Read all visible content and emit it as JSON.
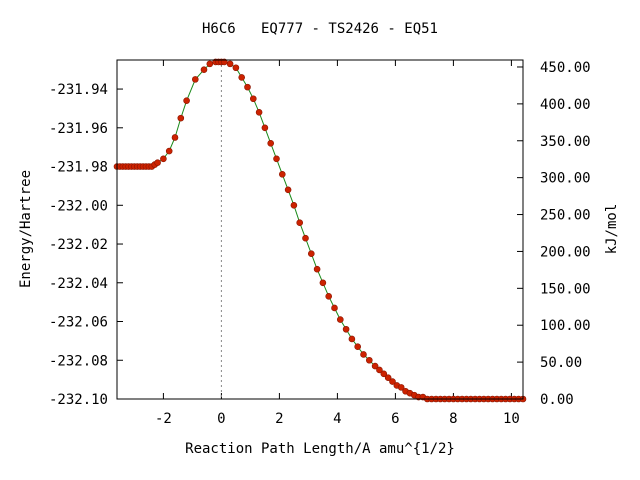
{
  "chart_data": {
    "type": "scatter",
    "title": "H6C6   EQ777 - TS2426 - EQ51",
    "xlabel": "Reaction Path Length/A amu^{1/2}",
    "ylabel_left": "Energy/Hartree",
    "ylabel_right": "kJ/mol",
    "xlim": [
      -3.6,
      10.4
    ],
    "ylim": [
      -232.1,
      -231.925
    ],
    "x_ticks": [
      -2,
      0,
      2,
      4,
      6,
      8,
      10
    ],
    "x_tick_labels": [
      "-2",
      "0",
      "2",
      "4",
      "6",
      "8",
      "10"
    ],
    "y_ticks": [
      -231.94,
      -231.96,
      -231.98,
      -232.0,
      -232.02,
      -232.04,
      -232.06,
      -232.08,
      -232.1
    ],
    "y_tick_labels": [
      "-231.94",
      "-231.96",
      "-231.98",
      "-232.00",
      "-232.02",
      "-232.04",
      "-232.06",
      "-232.08",
      "-232.10"
    ],
    "y2_ticks": [
      0,
      50,
      100,
      150,
      200,
      250,
      300,
      350,
      400,
      450
    ],
    "y2_tick_labels": [
      "0.00",
      "50.00",
      "100.00",
      "150.00",
      "200.00",
      "250.00",
      "300.00",
      "350.00",
      "400.00",
      "450.00"
    ],
    "ts_marker_x": 0,
    "grid": false,
    "line_color": "#1a8a1a",
    "marker_color": "#cc2200",
    "series": [
      {
        "x": [
          -3.6,
          -3.5,
          -3.4,
          -3.3,
          -3.2,
          -3.1,
          -3.0,
          -2.9,
          -2.8,
          -2.7,
          -2.6,
          -2.5,
          -2.4,
          -2.3,
          -2.2,
          -2.0,
          -1.8,
          -1.6,
          -1.4,
          -1.2,
          -0.9,
          -0.6,
          -0.4,
          -0.2,
          -0.1,
          0.0,
          0.1,
          0.3,
          0.5,
          0.7,
          0.9,
          1.1,
          1.3,
          1.5,
          1.7,
          1.9,
          2.1,
          2.3,
          2.5,
          2.7,
          2.9,
          3.1,
          3.3,
          3.5,
          3.7,
          3.9,
          4.1,
          4.3,
          4.5,
          4.7,
          4.9,
          5.1,
          5.3,
          5.45,
          5.6,
          5.75,
          5.9,
          6.05,
          6.2,
          6.35,
          6.5,
          6.65,
          6.8,
          6.95,
          7.1,
          7.25,
          7.4,
          7.55,
          7.7,
          7.85,
          8.0,
          8.15,
          8.3,
          8.45,
          8.6,
          8.75,
          8.9,
          9.05,
          9.2,
          9.35,
          9.5,
          9.65,
          9.8,
          9.95,
          10.1,
          10.25,
          10.4
        ],
        "y": [
          -231.98,
          -231.98,
          -231.98,
          -231.98,
          -231.98,
          -231.98,
          -231.98,
          -231.98,
          -231.98,
          -231.98,
          -231.98,
          -231.98,
          -231.98,
          -231.979,
          -231.978,
          -231.976,
          -231.972,
          -231.965,
          -231.955,
          -231.946,
          -231.935,
          -231.93,
          -231.927,
          -231.926,
          -231.926,
          -231.926,
          -231.926,
          -231.927,
          -231.929,
          -231.934,
          -231.939,
          -231.945,
          -231.952,
          -231.96,
          -231.968,
          -231.976,
          -231.984,
          -231.992,
          -232.0,
          -232.009,
          -232.017,
          -232.025,
          -232.033,
          -232.04,
          -232.047,
          -232.053,
          -232.059,
          -232.064,
          -232.069,
          -232.073,
          -232.077,
          -232.08,
          -232.083,
          -232.085,
          -232.087,
          -232.089,
          -232.091,
          -232.093,
          -232.094,
          -232.096,
          -232.097,
          -232.098,
          -232.099,
          -232.099,
          -232.1,
          -232.1,
          -232.1,
          -232.1,
          -232.1,
          -232.1,
          -232.1,
          -232.1,
          -232.1,
          -232.1,
          -232.1,
          -232.1,
          -232.1,
          -232.1,
          -232.1,
          -232.1,
          -232.1,
          -232.1,
          -232.1,
          -232.1,
          -232.1,
          -232.1,
          -232.1
        ]
      }
    ]
  }
}
